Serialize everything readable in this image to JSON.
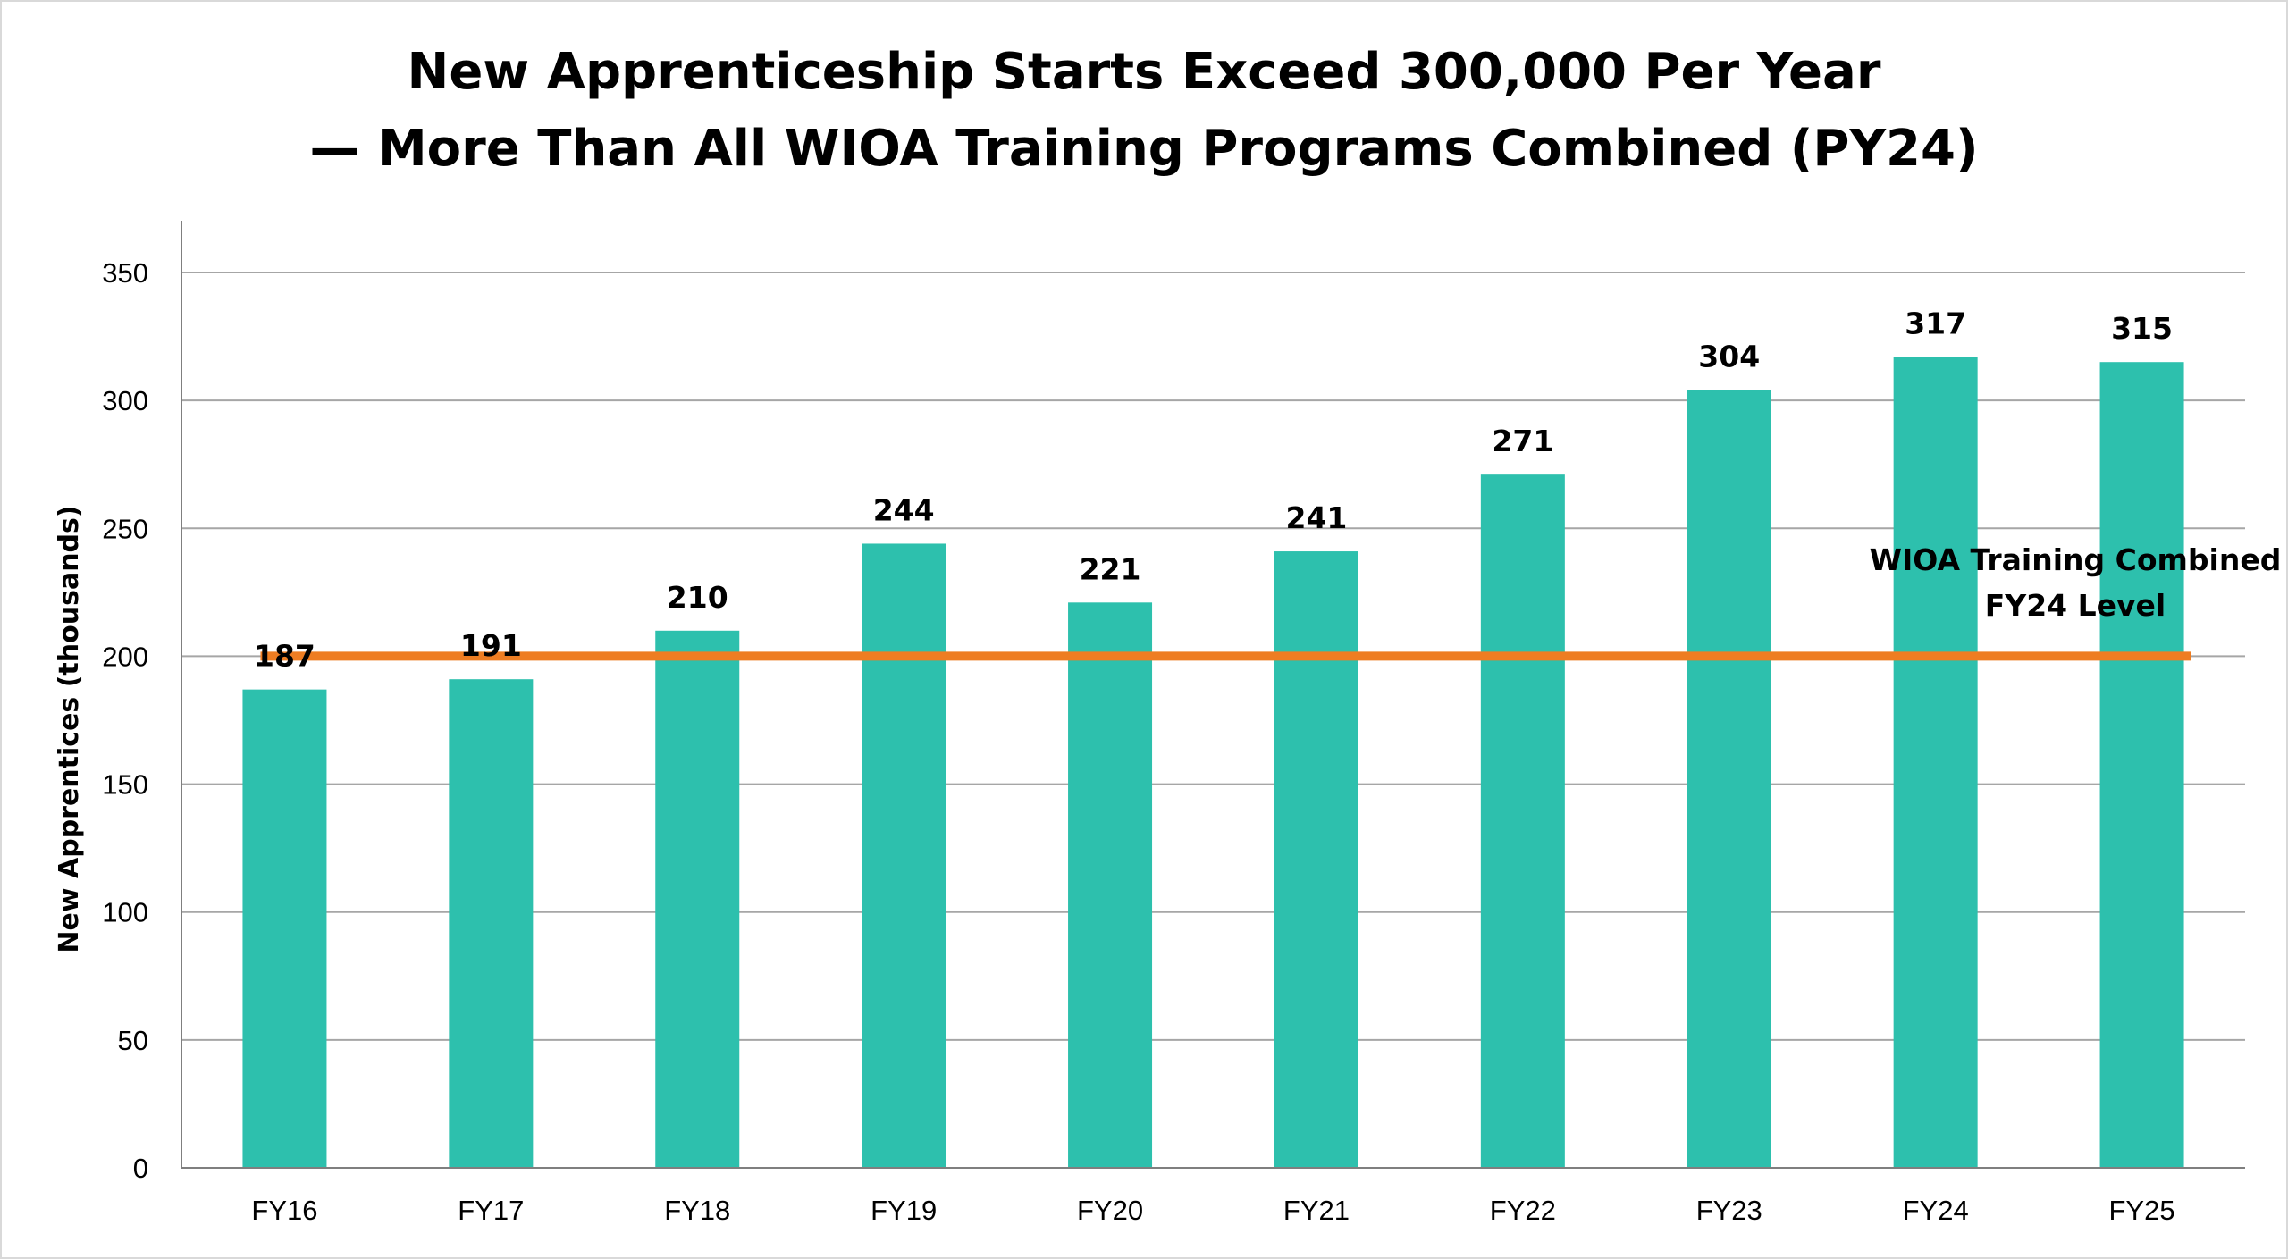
{
  "chart_data": {
    "type": "bar",
    "title_lines": [
      "New Apprenticeship Starts Exceed 300,000 Per Year",
      "— More Than All WIOA Training Programs Combined (PY24)"
    ],
    "xlabel": "",
    "ylabel": "New Apprentices (thousands)",
    "categories": [
      "FY16",
      "FY17",
      "FY18",
      "FY19",
      "FY20",
      "FY21",
      "FY22",
      "FY23",
      "FY24",
      "FY25"
    ],
    "values": [
      187,
      191,
      210,
      244,
      221,
      241,
      271,
      304,
      317,
      315
    ],
    "data_labels": [
      "187",
      "191",
      "210",
      "244",
      "221",
      "241",
      "271",
      "304",
      "317",
      "315"
    ],
    "ylim": [
      0,
      350
    ],
    "yticks": [
      0,
      50,
      100,
      150,
      200,
      250,
      300,
      350
    ],
    "ytick_labels": [
      "0",
      "50",
      "100",
      "150",
      "200",
      "250",
      "300",
      "350"
    ],
    "grid": true,
    "legend": "none",
    "bar_color": "#2DC0AD",
    "reference_line": {
      "value": 200,
      "color": "#EE7D22",
      "label_lines": [
        "WIOA Training Combined",
        "FY24 Level"
      ]
    }
  }
}
